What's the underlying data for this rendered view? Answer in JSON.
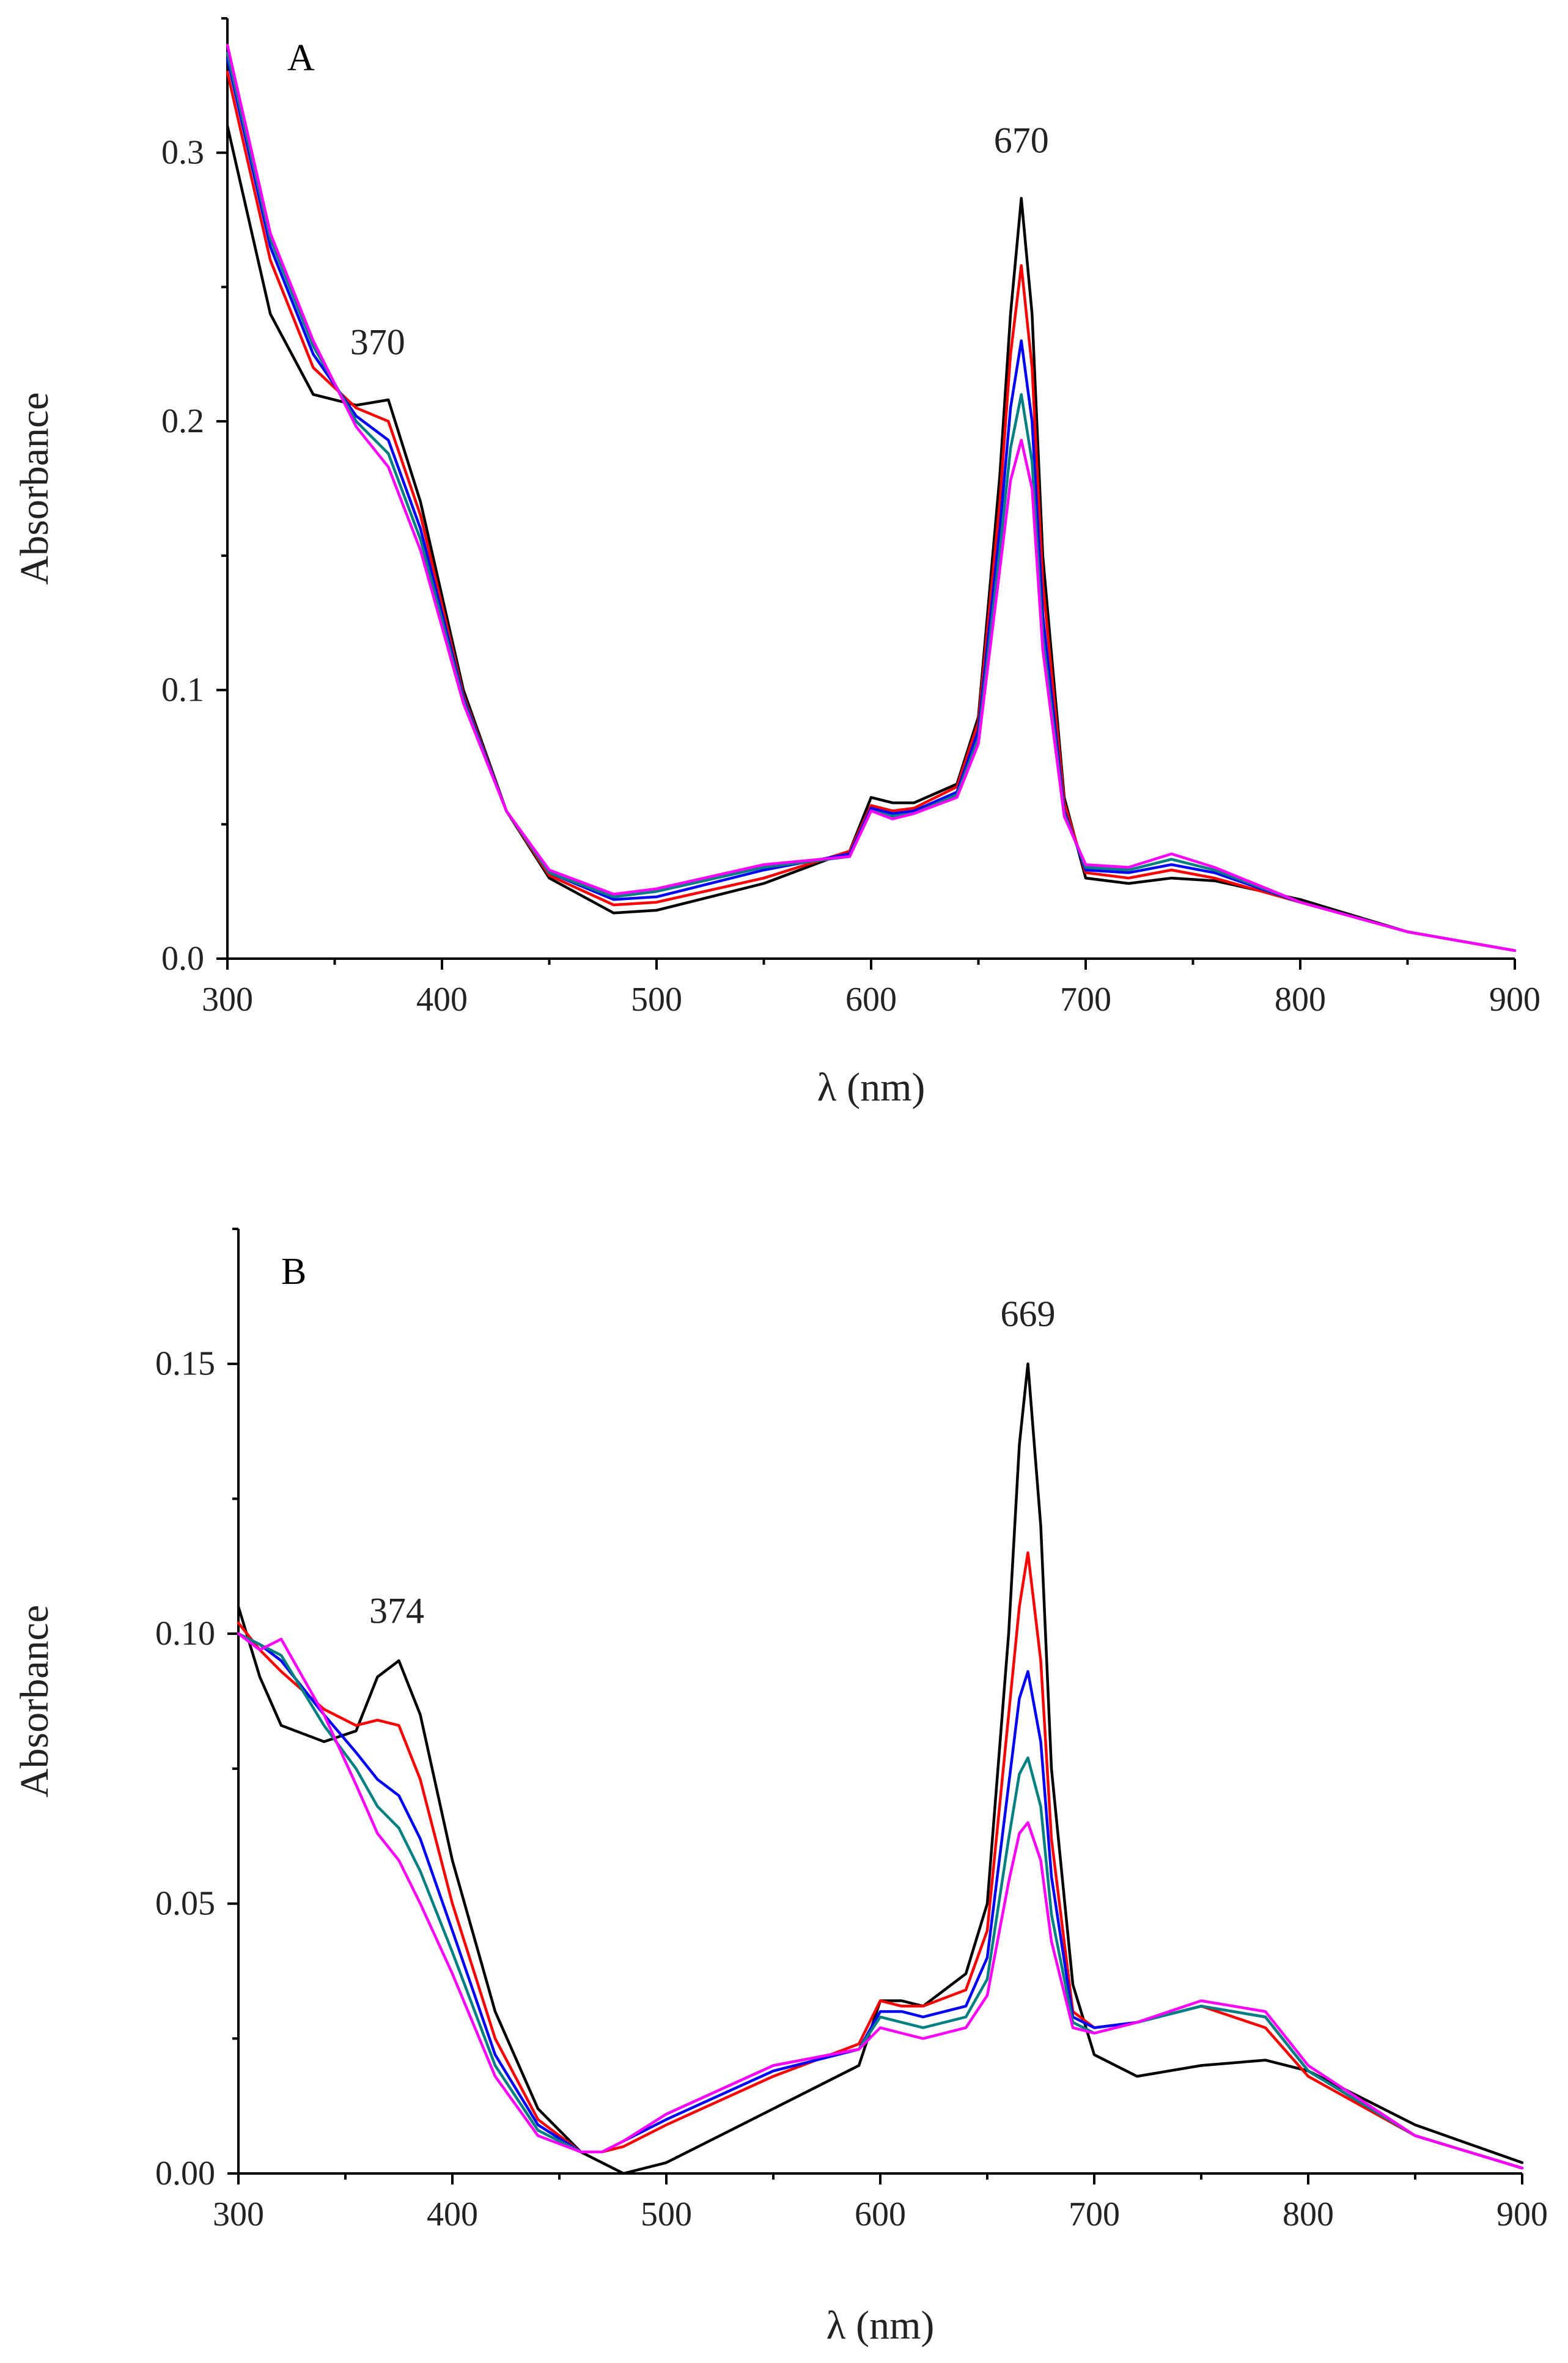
{
  "chart_data": [
    {
      "type": "line",
      "panel": "A",
      "xlabel": "λ (nm)",
      "ylabel": "Absorbance",
      "xlim": [
        300,
        900
      ],
      "ylim": [
        0,
        0.35
      ],
      "xticks": [
        300,
        400,
        500,
        600,
        700,
        800,
        900
      ],
      "xtick_labels": [
        "300",
        "400",
        "500",
        "600",
        "700",
        "800",
        "900"
      ],
      "yticks": [
        0,
        0.1,
        0.2,
        0.3
      ],
      "ytick_labels": [
        "0.0",
        "0.1",
        "0.2",
        "0.3"
      ],
      "annotations": [
        {
          "text": "370",
          "x": 370,
          "y": 0.225
        },
        {
          "text": "670",
          "x": 670,
          "y": 0.3
        }
      ],
      "series": [
        {
          "name": "black",
          "color": "#000000",
          "x": [
            300,
            320,
            340,
            360,
            375,
            390,
            410,
            430,
            450,
            480,
            500,
            550,
            590,
            600,
            610,
            620,
            640,
            650,
            660,
            665,
            670,
            675,
            680,
            690,
            700,
            720,
            740,
            760,
            800,
            850,
            900
          ],
          "y": [
            0.31,
            0.24,
            0.21,
            0.206,
            0.208,
            0.17,
            0.1,
            0.055,
            0.03,
            0.017,
            0.018,
            0.028,
            0.04,
            0.06,
            0.058,
            0.058,
            0.065,
            0.09,
            0.18,
            0.24,
            0.283,
            0.24,
            0.15,
            0.06,
            0.03,
            0.028,
            0.03,
            0.029,
            0.022,
            0.01,
            0.003
          ]
        },
        {
          "name": "red",
          "color": "#ff0000",
          "x": [
            300,
            320,
            340,
            360,
            375,
            390,
            410,
            430,
            450,
            480,
            500,
            550,
            590,
            600,
            610,
            620,
            640,
            650,
            660,
            665,
            670,
            675,
            680,
            690,
            700,
            720,
            740,
            760,
            800,
            850,
            900
          ],
          "y": [
            0.33,
            0.26,
            0.22,
            0.205,
            0.2,
            0.165,
            0.098,
            0.055,
            0.031,
            0.02,
            0.021,
            0.03,
            0.04,
            0.057,
            0.055,
            0.056,
            0.064,
            0.088,
            0.17,
            0.225,
            0.258,
            0.22,
            0.14,
            0.058,
            0.032,
            0.03,
            0.033,
            0.03,
            0.021,
            0.01,
            0.003
          ]
        },
        {
          "name": "blue",
          "color": "#0000ff",
          "x": [
            300,
            320,
            340,
            360,
            375,
            390,
            410,
            430,
            450,
            480,
            500,
            550,
            590,
            600,
            610,
            620,
            640,
            650,
            660,
            665,
            670,
            675,
            680,
            690,
            700,
            720,
            740,
            760,
            800,
            850,
            900
          ],
          "y": [
            0.335,
            0.265,
            0.225,
            0.202,
            0.193,
            0.16,
            0.097,
            0.055,
            0.032,
            0.022,
            0.023,
            0.033,
            0.039,
            0.056,
            0.054,
            0.055,
            0.062,
            0.085,
            0.16,
            0.205,
            0.23,
            0.2,
            0.128,
            0.055,
            0.033,
            0.032,
            0.035,
            0.032,
            0.021,
            0.01,
            0.003
          ]
        },
        {
          "name": "teal",
          "color": "#008080",
          "x": [
            300,
            320,
            340,
            360,
            375,
            390,
            410,
            430,
            450,
            480,
            500,
            550,
            590,
            600,
            610,
            620,
            640,
            650,
            660,
            665,
            670,
            675,
            680,
            690,
            700,
            720,
            740,
            760,
            800,
            850,
            900
          ],
          "y": [
            0.337,
            0.268,
            0.228,
            0.2,
            0.188,
            0.156,
            0.096,
            0.055,
            0.032,
            0.023,
            0.025,
            0.034,
            0.038,
            0.055,
            0.053,
            0.054,
            0.061,
            0.082,
            0.152,
            0.19,
            0.21,
            0.185,
            0.12,
            0.054,
            0.034,
            0.033,
            0.037,
            0.033,
            0.021,
            0.01,
            0.003
          ]
        },
        {
          "name": "magenta",
          "color": "#ff00ff",
          "x": [
            300,
            320,
            340,
            360,
            375,
            390,
            410,
            430,
            450,
            480,
            500,
            550,
            590,
            600,
            610,
            620,
            640,
            650,
            660,
            665,
            670,
            675,
            680,
            690,
            700,
            720,
            740,
            760,
            800,
            850,
            900
          ],
          "y": [
            0.34,
            0.27,
            0.23,
            0.198,
            0.183,
            0.152,
            0.095,
            0.055,
            0.033,
            0.024,
            0.026,
            0.035,
            0.038,
            0.055,
            0.052,
            0.054,
            0.06,
            0.08,
            0.145,
            0.178,
            0.193,
            0.175,
            0.115,
            0.053,
            0.035,
            0.034,
            0.039,
            0.034,
            0.021,
            0.01,
            0.003
          ]
        }
      ]
    },
    {
      "type": "line",
      "panel": "B",
      "xlabel": "λ (nm)",
      "ylabel": "Absorbance",
      "xlim": [
        300,
        900
      ],
      "ylim": [
        0,
        0.175
      ],
      "xticks": [
        300,
        400,
        500,
        600,
        700,
        800,
        900
      ],
      "xtick_labels": [
        "300",
        "400",
        "500",
        "600",
        "700",
        "800",
        "900"
      ],
      "yticks": [
        0,
        0.05,
        0.1,
        0.15
      ],
      "ytick_labels": [
        "0.00",
        "0.05",
        "0.10",
        "0.15"
      ],
      "annotations": [
        {
          "text": "374",
          "x": 374,
          "y": 0.102
        },
        {
          "text": "669",
          "x": 669,
          "y": 0.157
        }
      ],
      "series": [
        {
          "name": "black",
          "color": "#000000",
          "x": [
            300,
            310,
            320,
            340,
            355,
            365,
            375,
            385,
            400,
            420,
            440,
            460,
            480,
            500,
            550,
            590,
            600,
            610,
            620,
            640,
            650,
            660,
            665,
            669,
            675,
            680,
            690,
            700,
            720,
            750,
            780,
            800,
            850,
            900
          ],
          "y": [
            0.105,
            0.092,
            0.083,
            0.08,
            0.082,
            0.092,
            0.095,
            0.085,
            0.058,
            0.03,
            0.012,
            0.004,
            0.0,
            0.002,
            0.012,
            0.02,
            0.032,
            0.032,
            0.031,
            0.037,
            0.05,
            0.1,
            0.135,
            0.15,
            0.12,
            0.075,
            0.035,
            0.022,
            0.018,
            0.02,
            0.021,
            0.019,
            0.009,
            0.002
          ]
        },
        {
          "name": "red",
          "color": "#ff0000",
          "x": [
            300,
            310,
            320,
            340,
            355,
            365,
            375,
            385,
            400,
            420,
            440,
            460,
            470,
            480,
            500,
            550,
            590,
            600,
            610,
            620,
            640,
            650,
            660,
            665,
            669,
            675,
            680,
            690,
            700,
            720,
            750,
            780,
            800,
            850,
            900
          ],
          "y": [
            0.102,
            0.097,
            0.093,
            0.086,
            0.083,
            0.084,
            0.083,
            0.073,
            0.05,
            0.025,
            0.01,
            0.004,
            0.004,
            0.005,
            0.009,
            0.018,
            0.024,
            0.032,
            0.031,
            0.031,
            0.034,
            0.045,
            0.085,
            0.105,
            0.115,
            0.095,
            0.062,
            0.03,
            0.027,
            0.028,
            0.031,
            0.027,
            0.018,
            0.007,
            0.001
          ]
        },
        {
          "name": "blue",
          "color": "#0000ff",
          "x": [
            300,
            310,
            320,
            340,
            355,
            365,
            375,
            385,
            400,
            420,
            440,
            460,
            470,
            480,
            500,
            550,
            590,
            600,
            610,
            620,
            640,
            650,
            660,
            665,
            669,
            675,
            680,
            690,
            700,
            720,
            750,
            780,
            800,
            850,
            900
          ],
          "y": [
            0.1,
            0.098,
            0.095,
            0.085,
            0.078,
            0.073,
            0.07,
            0.062,
            0.045,
            0.022,
            0.009,
            0.004,
            0.004,
            0.006,
            0.01,
            0.019,
            0.023,
            0.03,
            0.03,
            0.029,
            0.031,
            0.04,
            0.072,
            0.088,
            0.093,
            0.08,
            0.055,
            0.029,
            0.027,
            0.028,
            0.031,
            0.029,
            0.019,
            0.007,
            0.001
          ]
        },
        {
          "name": "teal",
          "color": "#008080",
          "x": [
            300,
            310,
            320,
            340,
            355,
            365,
            375,
            385,
            400,
            420,
            440,
            460,
            470,
            480,
            500,
            550,
            590,
            600,
            610,
            620,
            640,
            650,
            660,
            665,
            669,
            675,
            680,
            690,
            700,
            720,
            750,
            780,
            800,
            850,
            900
          ],
          "y": [
            0.1,
            0.098,
            0.096,
            0.083,
            0.075,
            0.068,
            0.064,
            0.056,
            0.041,
            0.02,
            0.008,
            0.004,
            0.004,
            0.006,
            0.011,
            0.02,
            0.023,
            0.029,
            0.028,
            0.027,
            0.029,
            0.036,
            0.062,
            0.074,
            0.077,
            0.068,
            0.048,
            0.028,
            0.026,
            0.028,
            0.031,
            0.029,
            0.019,
            0.007,
            0.001
          ]
        },
        {
          "name": "magenta",
          "color": "#ff00ff",
          "x": [
            300,
            310,
            320,
            340,
            355,
            365,
            375,
            385,
            400,
            420,
            440,
            460,
            470,
            480,
            500,
            550,
            590,
            600,
            610,
            620,
            640,
            650,
            660,
            665,
            669,
            675,
            680,
            690,
            700,
            720,
            750,
            780,
            800,
            850,
            900
          ],
          "y": [
            0.1,
            0.097,
            0.099,
            0.085,
            0.072,
            0.063,
            0.058,
            0.05,
            0.037,
            0.018,
            0.007,
            0.004,
            0.004,
            0.006,
            0.011,
            0.02,
            0.023,
            0.027,
            0.026,
            0.025,
            0.027,
            0.033,
            0.054,
            0.063,
            0.065,
            0.058,
            0.043,
            0.027,
            0.026,
            0.028,
            0.032,
            0.03,
            0.02,
            0.007,
            0.001
          ]
        }
      ]
    }
  ]
}
